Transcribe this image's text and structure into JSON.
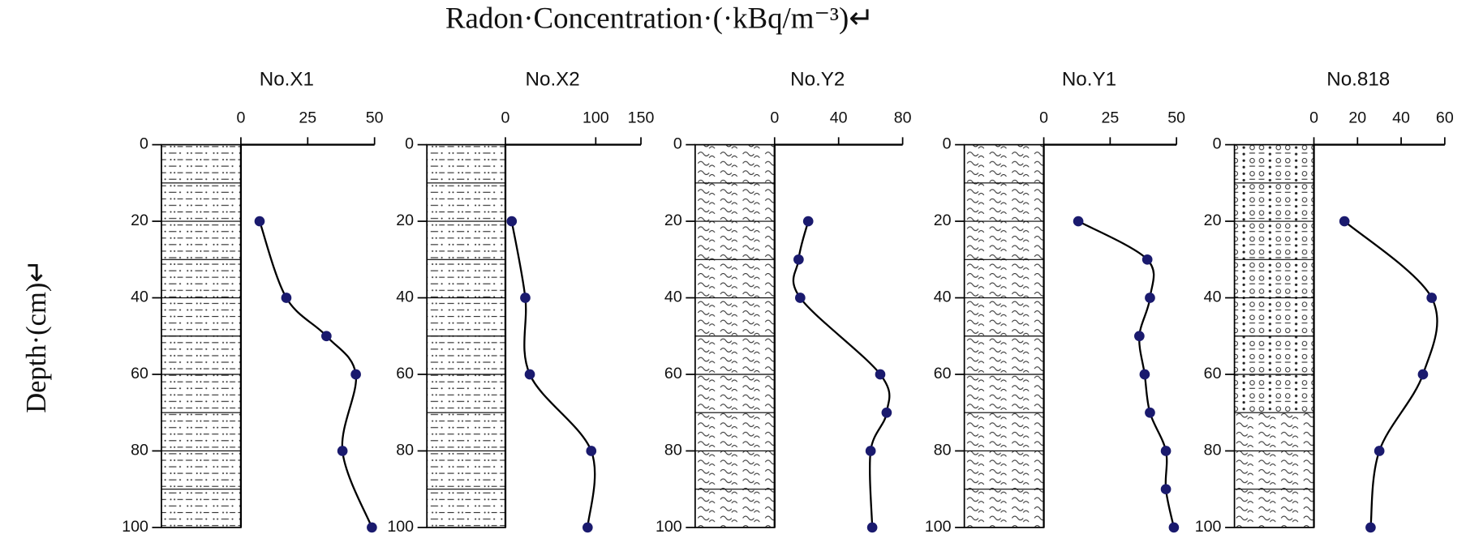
{
  "chart_data": {
    "type": "line",
    "title": "Radon·Concentration·(·kBq/m⁻³)↵",
    "y_label": "Depth·(cm)↵",
    "ylim": [
      0,
      100
    ],
    "y_inverted": true,
    "yticks": [
      0,
      20,
      40,
      60,
      80,
      100
    ],
    "line_color": "#000000",
    "marker_color": "#1a1a6e",
    "panels": [
      {
        "title": "No.X1",
        "xlim": [
          0,
          50
        ],
        "xticks": [
          0,
          25,
          50
        ],
        "depth": [
          20,
          40,
          50,
          60,
          80,
          100
        ],
        "values": [
          7,
          17,
          32,
          43,
          38,
          49
        ]
      },
      {
        "title": "No.X2",
        "xlim": [
          0,
          150
        ],
        "xticks": [
          0,
          100,
          150
        ],
        "depth": [
          20,
          40,
          60,
          80,
          100
        ],
        "values": [
          7,
          22,
          27,
          95,
          91
        ]
      },
      {
        "title": "No.Y2",
        "xlim": [
          0,
          80
        ],
        "xticks": [
          0,
          40,
          80
        ],
        "depth": [
          20,
          30,
          40,
          60,
          70,
          80,
          100
        ],
        "values": [
          21,
          15,
          16,
          66,
          70,
          60,
          61
        ]
      },
      {
        "title": "No.Y1",
        "xlim": [
          0,
          50
        ],
        "xticks": [
          0,
          25,
          50
        ],
        "depth": [
          20,
          30,
          40,
          50,
          60,
          70,
          80,
          90,
          100
        ],
        "values": [
          13,
          39,
          40,
          36,
          38,
          40,
          46,
          46,
          49
        ]
      },
      {
        "title": "No.818",
        "xlim": [
          0,
          60
        ],
        "xticks": [
          0,
          20,
          40,
          60
        ],
        "depth": [
          20,
          40,
          60,
          80,
          100
        ],
        "values": [
          14,
          54,
          50,
          30,
          26
        ]
      }
    ]
  }
}
